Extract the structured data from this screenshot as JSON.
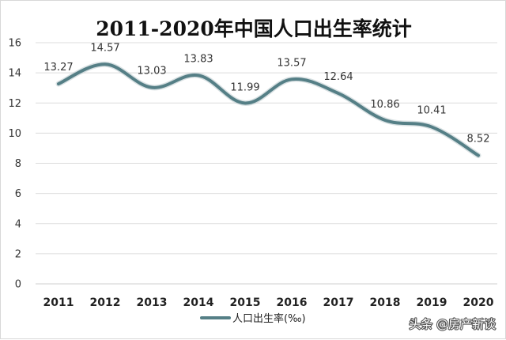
{
  "chart_data": {
    "type": "line",
    "title": "2011-2020年中国人口出生率统计",
    "categories": [
      "2011",
      "2012",
      "2013",
      "2014",
      "2015",
      "2016",
      "2017",
      "2018",
      "2019",
      "2020"
    ],
    "series": [
      {
        "name": "人口出生率(‰)",
        "values": [
          13.27,
          14.57,
          13.03,
          13.83,
          11.99,
          13.57,
          12.64,
          10.86,
          10.41,
          8.52
        ],
        "labels": [
          "13.27",
          "14.57",
          "13.03",
          "13.83",
          "11.99",
          "13.57",
          "12.64",
          "10.86",
          "10.41",
          "8.52"
        ]
      }
    ],
    "ylim": [
      0,
      16
    ],
    "yticks": [
      0,
      2,
      4,
      6,
      8,
      10,
      12,
      14,
      16
    ],
    "ytick_labels": [
      "0",
      "2",
      "4",
      "6",
      "8",
      "10",
      "12",
      "14",
      "16"
    ],
    "grid": true,
    "legend_position": "bottom",
    "xlabel": "",
    "ylabel": ""
  },
  "watermark": "头条 @房产新谈",
  "colors": {
    "line": "#557f86",
    "grid": "#dcdcdc",
    "axis": "#cfcfcf"
  }
}
